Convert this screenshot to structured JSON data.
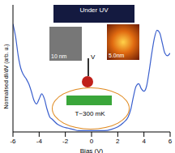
{
  "chart_data": {
    "type": "line",
    "x_label": "Bias (V)",
    "y_label": "Normalised dI/dV (arb. u.)",
    "x": [
      -6,
      -5.8,
      -5.6,
      -5.4,
      -5.2,
      -5.0,
      -4.8,
      -4.6,
      -4.4,
      -4.2,
      -4.0,
      -3.8,
      -3.6,
      -3.4,
      -3.2,
      -3.0,
      -2.6,
      -2.2,
      -1.8,
      -1.4,
      -1.0,
      -0.5,
      0,
      0.5,
      1.0,
      1.5,
      2.0,
      2.4,
      2.8,
      3.0,
      3.2,
      3.4,
      3.6,
      3.8,
      4.0,
      4.2,
      4.4,
      4.6,
      4.8,
      5.0,
      5.2,
      5.4,
      5.6,
      5.8,
      6.0
    ],
    "values": [
      0.85,
      0.75,
      0.6,
      0.5,
      0.45,
      0.42,
      0.38,
      0.32,
      0.25,
      0.22,
      0.26,
      0.3,
      0.26,
      0.18,
      0.12,
      0.1,
      0.06,
      0.04,
      0.03,
      0.02,
      0.01,
      0.01,
      0.01,
      0.01,
      0.01,
      0.02,
      0.04,
      0.07,
      0.12,
      0.18,
      0.28,
      0.36,
      0.38,
      0.34,
      0.32,
      0.36,
      0.48,
      0.62,
      0.74,
      0.8,
      0.78,
      0.7,
      0.62,
      0.6,
      0.62
    ],
    "color": "#3a5fcd",
    "xlim": [
      -6,
      6
    ],
    "xticks": [
      -6,
      -4,
      -2,
      0,
      2,
      4,
      6
    ],
    "ylim": [
      0,
      1
    ],
    "yticks": [],
    "tick_labels": "x",
    "annotations": [
      "Under UV",
      "10 nm",
      "5.0nm",
      "V",
      "T~300 mK"
    ]
  }
}
